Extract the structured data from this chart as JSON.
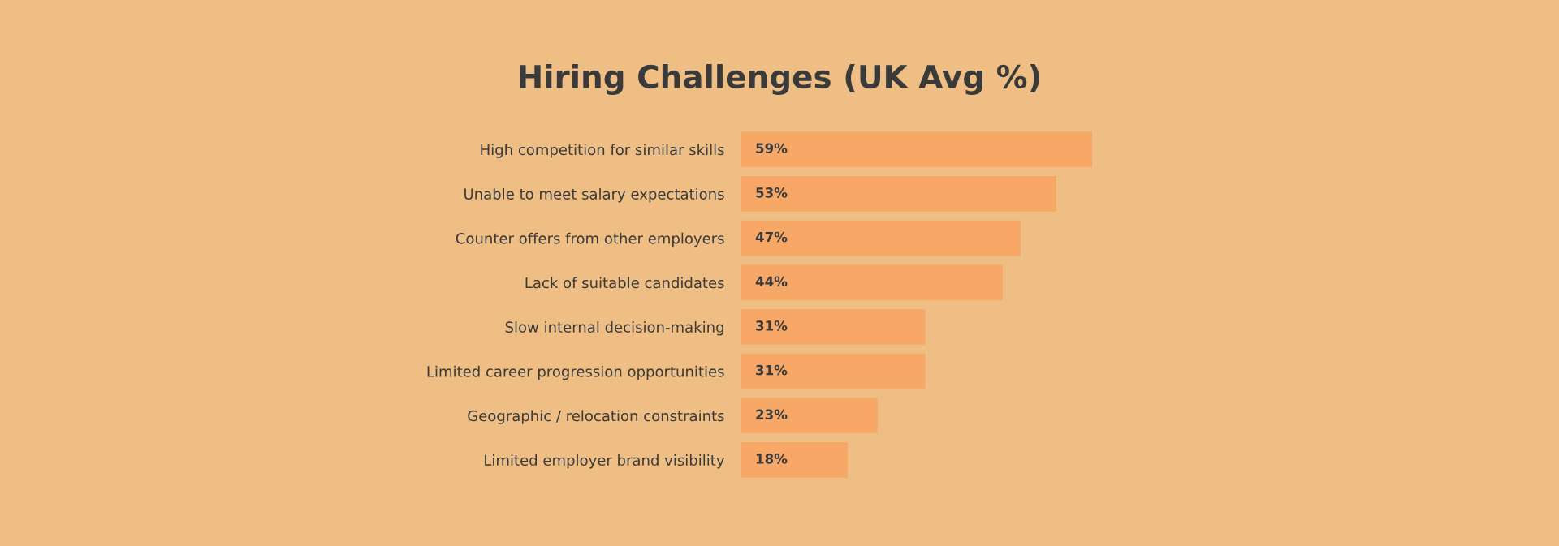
{
  "chart_data": {
    "type": "bar",
    "orientation": "horizontal",
    "title": "Hiring Challenges (UK Avg %)",
    "categories": [
      "High competition for similar skills",
      "Unable to meet salary expectations",
      "Counter offers from other employers",
      "Lack of suitable candidates",
      "Slow internal decision-making",
      "Limited career progression opportunities",
      "Geographic / relocation constraints",
      "Limited employer brand visibility"
    ],
    "values": [
      59,
      53,
      47,
      44,
      31,
      31,
      23,
      18
    ],
    "value_labels": [
      "59%",
      "53%",
      "47%",
      "44%",
      "31%",
      "31%",
      "23%",
      "18%"
    ],
    "color": "#f7a867",
    "grid": false,
    "legend": false
  }
}
